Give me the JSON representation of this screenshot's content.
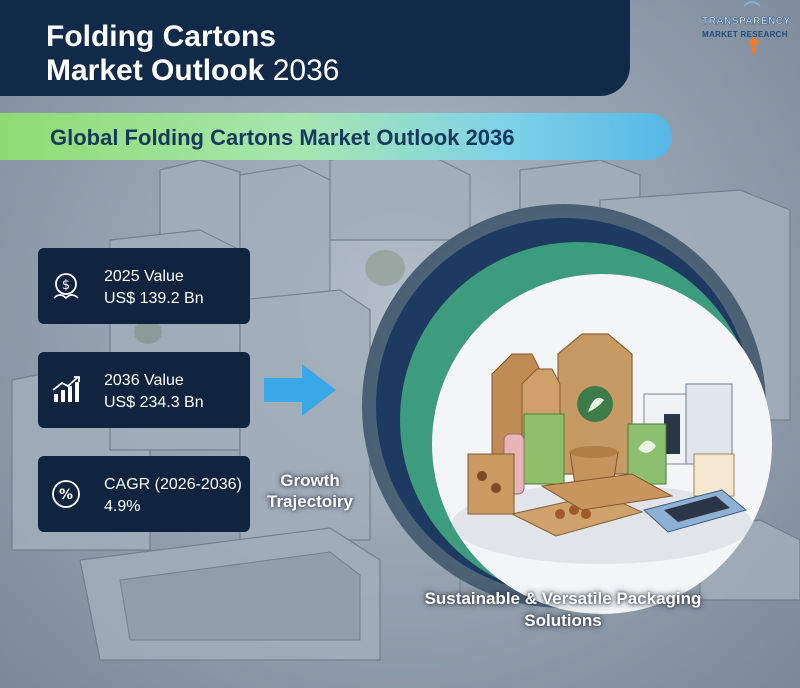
{
  "header": {
    "title_line1": "Folding Cartons",
    "title_line2": "Market Outlook",
    "title_year": "2036"
  },
  "logo": {
    "line1": "TRANSPARENCY",
    "line2": "MARKET RESEARCH"
  },
  "banner": {
    "text": "Global Folding Cartons Market Outlook 2036"
  },
  "stats": [
    {
      "icon": "dollar-leaf-icon",
      "label": "2025 Value",
      "value": "US$ 139.2 Bn"
    },
    {
      "icon": "bar-chart-growth-icon",
      "label": "2036 Value",
      "value": "US$ 234.3 Bn"
    },
    {
      "icon": "percent-icon",
      "label": "CAGR (2026-2036)",
      "value": "4.9%"
    }
  ],
  "growth_label": "Growth Trajectoiry",
  "tagline": "Sustainable & Versatile Packaging Solutions",
  "colors": {
    "header_bg": "#122a4a",
    "card_bg": "#10243f",
    "banner_start": "#8fdc72",
    "banner_end": "#56b8e6",
    "arrow": "#3aa7e6",
    "ring_accent": "#3e9c7e"
  }
}
